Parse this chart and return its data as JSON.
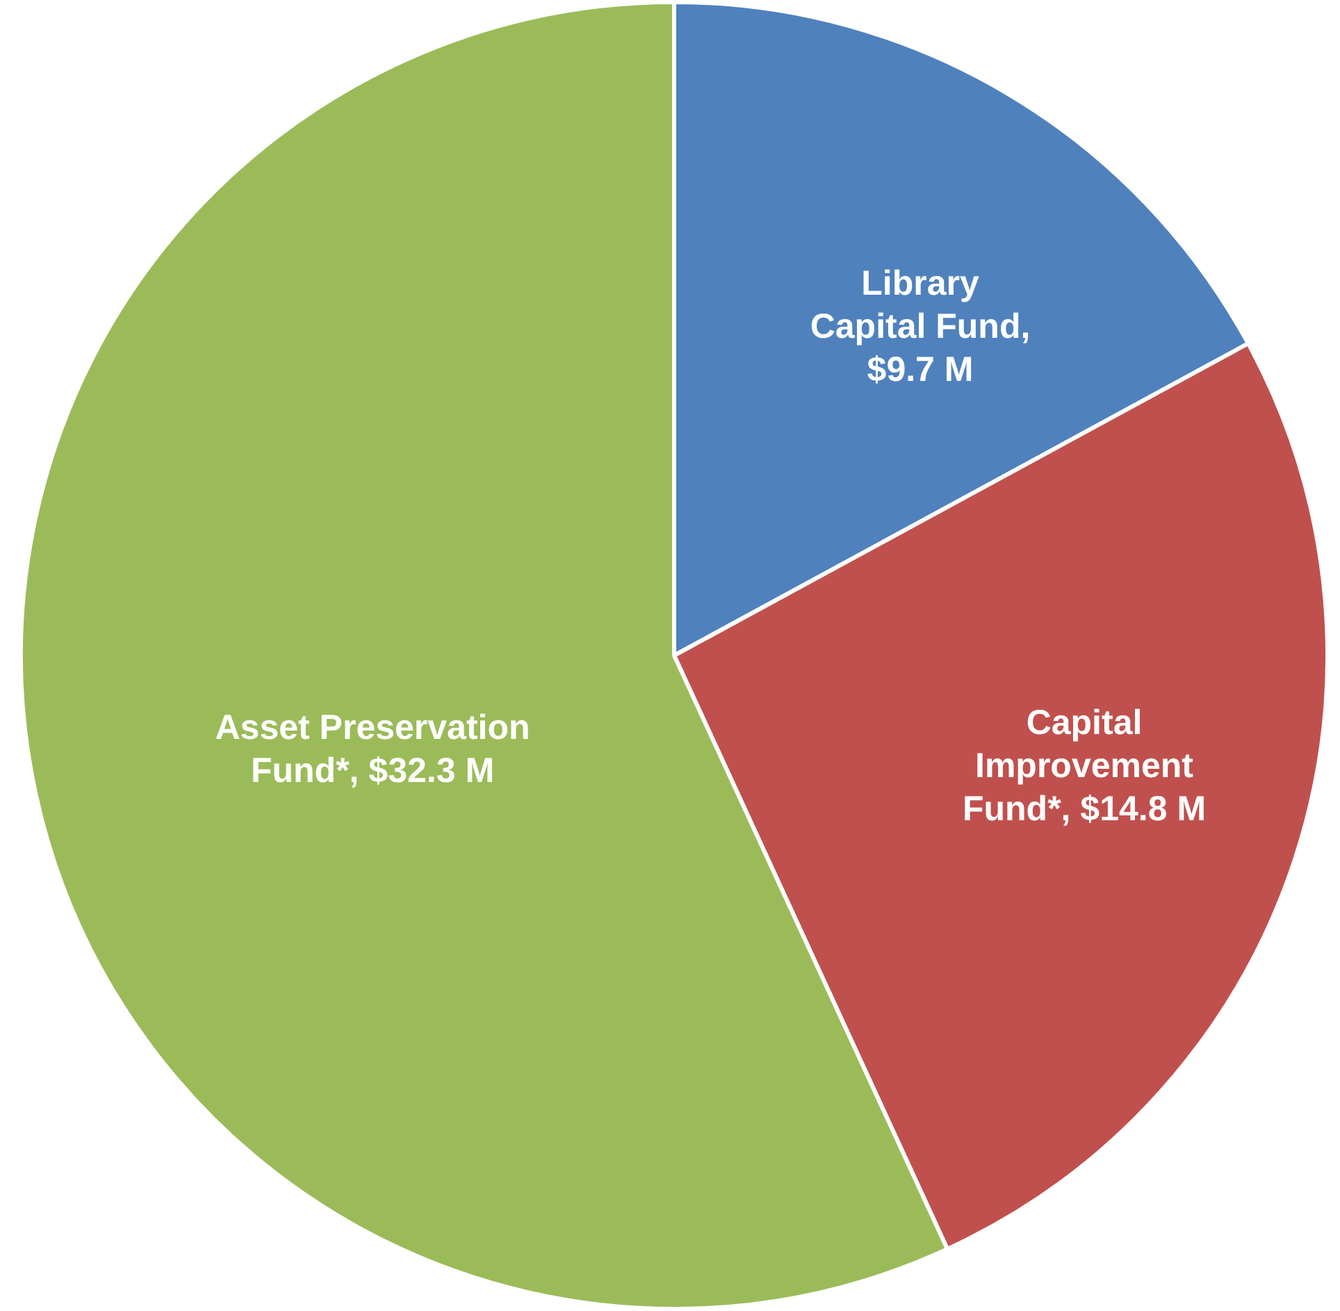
{
  "chart_data": {
    "type": "pie",
    "categories": [
      "Library Capital Fund, $9.7 M",
      "Capital Improvement Fund*, $14.8 M",
      "Asset Preservation Fund*, $32.3 M"
    ],
    "values": [
      9.7,
      14.8,
      32.3
    ],
    "colors": [
      "#4f81bd",
      "#c0504d",
      "#9bbb59"
    ],
    "legend": false
  }
}
